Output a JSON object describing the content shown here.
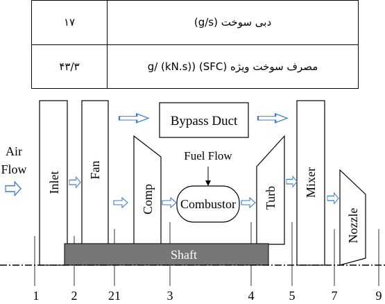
{
  "table": {
    "rows": [
      [
        "۱۷",
        "دبی سوخت (g/s)"
      ],
      [
        "۴۳/۳",
        "مصرف سوخت ویژه (SFC) (g/ (kN.s)"
      ]
    ]
  },
  "diagram": {
    "air_flow": [
      "Air",
      "Flow"
    ],
    "components": {
      "inlet": "Inlet",
      "fan": "Fan",
      "bypass": "Bypass Duct",
      "comp": "Comp",
      "combustor": "Combustor",
      "turb": "Turb",
      "mixer": "Mixer",
      "nozzle": "Nozzle",
      "shaft": "Shaft"
    },
    "fuel_flow": "Fuel Flow",
    "stations": [
      "1",
      "2",
      "21",
      "3",
      "4",
      "5",
      "7",
      "9"
    ]
  }
}
